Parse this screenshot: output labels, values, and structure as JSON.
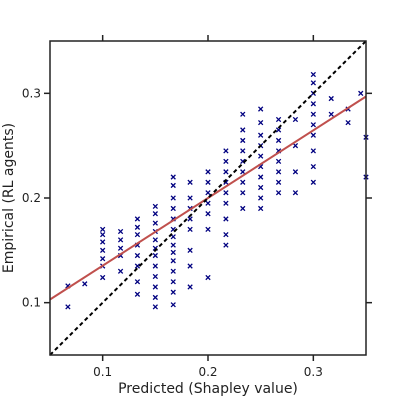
{
  "chart_data": {
    "type": "scatter",
    "title": "",
    "xlabel": "Predicted (Shapley value)",
    "ylabel": "Empirical (RL agents)",
    "xlim": [
      0.05,
      0.35
    ],
    "ylim": [
      0.05,
      0.35
    ],
    "xticks": [
      0.1,
      0.2,
      0.3
    ],
    "yticks": [
      0.1,
      0.2,
      0.3
    ],
    "xtick_labels": [
      "0.1",
      "0.2",
      "0.3"
    ],
    "ytick_labels": [
      "0.1",
      "0.2",
      "0.3"
    ],
    "grid": false,
    "marker": "x",
    "colors": {
      "points": "#000080",
      "fit_line": "#c0504d",
      "identity_line": "#000000",
      "axes": "#222222"
    },
    "fit_line": {
      "x": [
        0.05,
        0.35
      ],
      "y": [
        0.103,
        0.297
      ]
    },
    "identity_line": {
      "x": [
        0.05,
        0.35
      ],
      "y": [
        0.05,
        0.35
      ]
    },
    "points": [
      [
        0.067,
        0.096
      ],
      [
        0.067,
        0.116
      ],
      [
        0.083,
        0.118
      ],
      [
        0.1,
        0.124
      ],
      [
        0.1,
        0.135
      ],
      [
        0.1,
        0.142
      ],
      [
        0.1,
        0.15
      ],
      [
        0.1,
        0.158
      ],
      [
        0.1,
        0.165
      ],
      [
        0.1,
        0.17
      ],
      [
        0.117,
        0.13
      ],
      [
        0.117,
        0.145
      ],
      [
        0.117,
        0.152
      ],
      [
        0.117,
        0.16
      ],
      [
        0.117,
        0.168
      ],
      [
        0.133,
        0.108
      ],
      [
        0.133,
        0.12
      ],
      [
        0.133,
        0.135
      ],
      [
        0.133,
        0.145
      ],
      [
        0.133,
        0.155
      ],
      [
        0.133,
        0.165
      ],
      [
        0.133,
        0.172
      ],
      [
        0.133,
        0.18
      ],
      [
        0.15,
        0.096
      ],
      [
        0.15,
        0.105
      ],
      [
        0.15,
        0.115
      ],
      [
        0.15,
        0.125
      ],
      [
        0.15,
        0.135
      ],
      [
        0.15,
        0.145
      ],
      [
        0.15,
        0.152
      ],
      [
        0.15,
        0.16
      ],
      [
        0.15,
        0.168
      ],
      [
        0.15,
        0.176
      ],
      [
        0.15,
        0.185
      ],
      [
        0.15,
        0.192
      ],
      [
        0.167,
        0.098
      ],
      [
        0.167,
        0.11
      ],
      [
        0.167,
        0.12
      ],
      [
        0.167,
        0.13
      ],
      [
        0.167,
        0.14
      ],
      [
        0.167,
        0.148
      ],
      [
        0.167,
        0.155
      ],
      [
        0.167,
        0.163
      ],
      [
        0.167,
        0.17
      ],
      [
        0.167,
        0.18
      ],
      [
        0.167,
        0.19
      ],
      [
        0.167,
        0.2
      ],
      [
        0.167,
        0.212
      ],
      [
        0.167,
        0.22
      ],
      [
        0.183,
        0.115
      ],
      [
        0.183,
        0.135
      ],
      [
        0.183,
        0.15
      ],
      [
        0.183,
        0.17
      ],
      [
        0.183,
        0.18
      ],
      [
        0.183,
        0.19
      ],
      [
        0.183,
        0.2
      ],
      [
        0.183,
        0.215
      ],
      [
        0.2,
        0.124
      ],
      [
        0.2,
        0.17
      ],
      [
        0.2,
        0.185
      ],
      [
        0.2,
        0.195
      ],
      [
        0.2,
        0.205
      ],
      [
        0.2,
        0.215
      ],
      [
        0.2,
        0.225
      ],
      [
        0.217,
        0.155
      ],
      [
        0.217,
        0.165
      ],
      [
        0.217,
        0.18
      ],
      [
        0.217,
        0.195
      ],
      [
        0.217,
        0.205
      ],
      [
        0.217,
        0.215
      ],
      [
        0.217,
        0.225
      ],
      [
        0.217,
        0.235
      ],
      [
        0.217,
        0.245
      ],
      [
        0.233,
        0.19
      ],
      [
        0.233,
        0.205
      ],
      [
        0.233,
        0.215
      ],
      [
        0.233,
        0.225
      ],
      [
        0.233,
        0.235
      ],
      [
        0.233,
        0.245
      ],
      [
        0.233,
        0.255
      ],
      [
        0.233,
        0.265
      ],
      [
        0.233,
        0.28
      ],
      [
        0.25,
        0.19
      ],
      [
        0.25,
        0.2
      ],
      [
        0.25,
        0.21
      ],
      [
        0.25,
        0.22
      ],
      [
        0.25,
        0.23
      ],
      [
        0.25,
        0.24
      ],
      [
        0.25,
        0.25
      ],
      [
        0.25,
        0.26
      ],
      [
        0.25,
        0.272
      ],
      [
        0.25,
        0.285
      ],
      [
        0.267,
        0.205
      ],
      [
        0.267,
        0.215
      ],
      [
        0.267,
        0.225
      ],
      [
        0.267,
        0.235
      ],
      [
        0.267,
        0.245
      ],
      [
        0.267,
        0.255
      ],
      [
        0.267,
        0.265
      ],
      [
        0.267,
        0.275
      ],
      [
        0.283,
        0.205
      ],
      [
        0.283,
        0.225
      ],
      [
        0.283,
        0.25
      ],
      [
        0.283,
        0.275
      ],
      [
        0.3,
        0.215
      ],
      [
        0.3,
        0.23
      ],
      [
        0.3,
        0.245
      ],
      [
        0.3,
        0.26
      ],
      [
        0.3,
        0.27
      ],
      [
        0.3,
        0.28
      ],
      [
        0.3,
        0.29
      ],
      [
        0.3,
        0.3
      ],
      [
        0.3,
        0.31
      ],
      [
        0.3,
        0.318
      ],
      [
        0.317,
        0.28
      ],
      [
        0.317,
        0.295
      ],
      [
        0.333,
        0.272
      ],
      [
        0.333,
        0.285
      ],
      [
        0.345,
        0.3
      ],
      [
        0.35,
        0.22
      ],
      [
        0.35,
        0.258
      ]
    ]
  }
}
